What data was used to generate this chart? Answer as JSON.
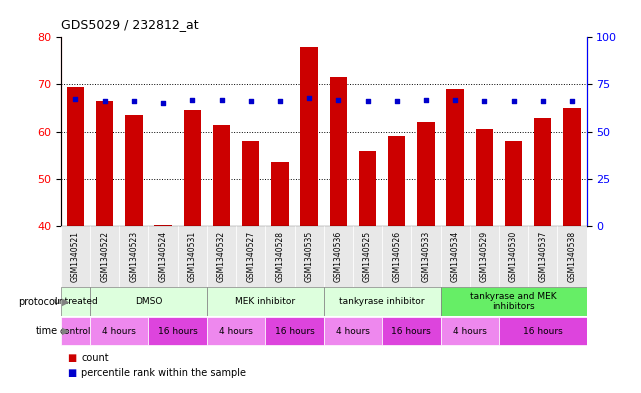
{
  "title": "GDS5029 / 232812_at",
  "samples": [
    "GSM1340521",
    "GSM1340522",
    "GSM1340523",
    "GSM1340524",
    "GSM1340531",
    "GSM1340532",
    "GSM1340527",
    "GSM1340528",
    "GSM1340535",
    "GSM1340536",
    "GSM1340525",
    "GSM1340526",
    "GSM1340533",
    "GSM1340534",
    "GSM1340529",
    "GSM1340530",
    "GSM1340537",
    "GSM1340538"
  ],
  "bar_values": [
    69.5,
    66.5,
    63.5,
    40.2,
    64.5,
    61.5,
    58.0,
    53.5,
    78.0,
    71.5,
    56.0,
    59.0,
    62.0,
    69.0,
    60.5,
    58.0,
    63.0,
    65.0
  ],
  "dot_values_pct": [
    67.5,
    66,
    66,
    65,
    67,
    67,
    66,
    66,
    68,
    67,
    66,
    66,
    67,
    67,
    66,
    66,
    66,
    66
  ],
  "ylim_left": [
    40,
    80
  ],
  "ylim_right": [
    0,
    100
  ],
  "yticks_left": [
    40,
    50,
    60,
    70,
    80
  ],
  "yticks_right": [
    0,
    25,
    50,
    75,
    100
  ],
  "bar_color": "#cc0000",
  "dot_color": "#0000cc",
  "protocol_groups": [
    {
      "label": "untreated",
      "start": 0,
      "end": 1,
      "color": "#ddffdd"
    },
    {
      "label": "DMSO",
      "start": 1,
      "end": 5,
      "color": "#ddffdd"
    },
    {
      "label": "MEK inhibitor",
      "start": 5,
      "end": 9,
      "color": "#ddffdd"
    },
    {
      "label": "tankyrase inhibitor",
      "start": 9,
      "end": 13,
      "color": "#ddffdd"
    },
    {
      "label": "tankyrase and MEK\ninhibitors",
      "start": 13,
      "end": 18,
      "color": "#66ee66"
    }
  ],
  "time_groups": [
    {
      "label": "control",
      "start": 0,
      "end": 1,
      "color": "#ee88ee"
    },
    {
      "label": "4 hours",
      "start": 1,
      "end": 3,
      "color": "#ee88ee"
    },
    {
      "label": "16 hours",
      "start": 3,
      "end": 5,
      "color": "#dd44dd"
    },
    {
      "label": "4 hours",
      "start": 5,
      "end": 7,
      "color": "#ee88ee"
    },
    {
      "label": "16 hours",
      "start": 7,
      "end": 9,
      "color": "#dd44dd"
    },
    {
      "label": "4 hours",
      "start": 9,
      "end": 11,
      "color": "#ee88ee"
    },
    {
      "label": "16 hours",
      "start": 11,
      "end": 13,
      "color": "#dd44dd"
    },
    {
      "label": "4 hours",
      "start": 13,
      "end": 15,
      "color": "#ee88ee"
    },
    {
      "label": "16 hours",
      "start": 15,
      "end": 18,
      "color": "#dd44dd"
    }
  ],
  "legend_count_label": "count",
  "legend_pct_label": "percentile rank within the sample",
  "grid_yticks": [
    50,
    60,
    70
  ]
}
